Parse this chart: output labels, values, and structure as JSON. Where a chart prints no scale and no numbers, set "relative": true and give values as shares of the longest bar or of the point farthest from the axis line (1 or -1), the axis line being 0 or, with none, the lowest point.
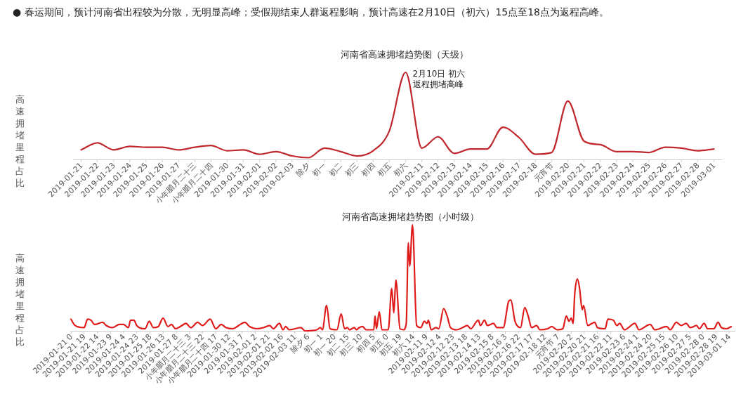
{
  "chart_data": [
    {
      "type": "line",
      "title": "河南省高速拥堵趋势图（天级）",
      "ylabel": "高速拥堵里程占比",
      "relative": true,
      "color": "#c0282d",
      "categories": [
        "2019-01-21",
        "2019-01-22",
        "2019-01-23",
        "2019-01-24",
        "2019-01-25",
        "2019-01-26",
        "2019-01-27",
        "小年腊月二十三",
        "小年腊月二十四",
        "2019-01-30",
        "2019-01-31",
        "2019-02-01",
        "2019-02-02",
        "2019-02-03",
        "除夕",
        "初一",
        "初二",
        "初三",
        "初四",
        "初五",
        "初六",
        "2019-02-11",
        "2019-02-12",
        "2019-02-13",
        "2019-02-14",
        "2019-02-15",
        "2019-02-16",
        "2019-02-17",
        "2019-02-18",
        "元宵节",
        "2019-02-20",
        "2019-02-21",
        "2019-02-22",
        "2019-02-23",
        "2019-02-24",
        "2019-02-25",
        "2019-02-26",
        "2019-02-27",
        "2019-02-28",
        "2019-03-01"
      ],
      "values": [
        0.11,
        0.19,
        0.11,
        0.15,
        0.14,
        0.14,
        0.11,
        0.14,
        0.16,
        0.1,
        0.11,
        0.06,
        0.09,
        0.04,
        0.02,
        0.13,
        0.09,
        0.04,
        0.1,
        0.33,
        1,
        0.13,
        0.26,
        0.07,
        0.12,
        0.12,
        0.37,
        0.25,
        0.06,
        0.08,
        0.67,
        0.21,
        0.17,
        0.09,
        0.09,
        0.08,
        0.14,
        0.13,
        0.1,
        0.12
      ],
      "annotations": [
        "● 春运期间，预计河南省出程较为分散，无明显高峰；受假期结束人群返程影响，预计高速在2月10日（初六）15点至18点为返程高峰。",
        {
          "text": "2月10日 初六",
          "x": "初六",
          "y": 1
        },
        {
          "text": "返程拥堵高峰",
          "x": "初六",
          "y": 1
        }
      ]
    },
    {
      "type": "line",
      "title": "河南省高速拥堵趋势图（小时级）",
      "ylabel": "高速拥堵里程占比",
      "relative": true,
      "color": "#e01b1b",
      "xlim": [
        "2019-01-21T00:00",
        "2019-03-01T23:00"
      ],
      "x": [
        "2019-01-21T00:00",
        "2019-01-21T06:00",
        "2019-01-21T19:00",
        "2019-01-22T00:00",
        "2019-01-22T05:00",
        "2019-01-22T10:00",
        "2019-01-22T22:00",
        "2019-01-23T03:00",
        "2019-01-23T12:00",
        "2019-01-23T22:00",
        "2019-01-24T04:00",
        "2019-01-24T11:00",
        "2019-01-24T14:00",
        "2019-01-24T19:00",
        "2019-01-24T23:00",
        "2019-01-25T11:00",
        "2019-01-25T17:00",
        "2019-01-25T23:00",
        "2019-01-26T06:00",
        "2019-01-26T13:00",
        "2019-01-26T20:00",
        "2019-01-27T01:00",
        "2019-01-27T07:00",
        "2019-01-27T16:00",
        "2019-01-27T22:00",
        "2019-01-28T05:00",
        "2019-01-28T15:00",
        "2019-01-28T22:00",
        "2019-01-29T09:00",
        "2019-01-29T17:00",
        "2019-01-30T01:00",
        "2019-01-30T08:00",
        "2019-01-30T18:00",
        "2019-01-31T02:00",
        "2019-01-31T11:00",
        "2019-01-31T18:00",
        "2019-02-01T04:00",
        "2019-02-01T14:00",
        "2019-02-01T23:00",
        "2019-02-02T04:00",
        "2019-02-02T13:00",
        "2019-02-02T18:00",
        "2019-02-02T22:00",
        "2019-02-03T03:00",
        "2019-02-03T20:00",
        "2019-02-04T02:00",
        "2019-02-04T19:00",
        "2019-02-05T00:00",
        "2019-02-05T03:00",
        "2019-02-05T09:00",
        "2019-02-05T14:00",
        "2019-02-06T00:00",
        "2019-02-06T06:00",
        "2019-02-06T11:00",
        "2019-02-06T15:00",
        "2019-02-06T18:00",
        "2019-02-07T01:00",
        "2019-02-07T04:00",
        "2019-02-07T08:00",
        "2019-02-07T13:00",
        "2019-02-07T18:00",
        "2019-02-08T05:00",
        "2019-02-08T07:00",
        "2019-02-08T09:00",
        "2019-02-08T13:00",
        "2019-02-08T17:00",
        "2019-02-09T02:00",
        "2019-02-09T07:00",
        "2019-02-09T10:00",
        "2019-02-09T13:00",
        "2019-02-09T19:00",
        "2019-02-10T00:00",
        "2019-02-10T04:00",
        "2019-02-10T07:00",
        "2019-02-10T09:00",
        "2019-02-10T13:00",
        "2019-02-10T19:00",
        "2019-02-11T01:00",
        "2019-02-11T06:00",
        "2019-02-11T10:00",
        "2019-02-11T12:00",
        "2019-02-11T16:00",
        "2019-02-11T23:00",
        "2019-02-12T03:00",
        "2019-02-12T10:00",
        "2019-02-12T15:00",
        "2019-02-12T20:00",
        "2019-02-13T05:00",
        "2019-02-13T13:00",
        "2019-02-13T20:00",
        "2019-02-14T01:00",
        "2019-02-14T12:00",
        "2019-02-14T15:00",
        "2019-02-14T21:00",
        "2019-02-15T01:00",
        "2019-02-15T10:00",
        "2019-02-15T15:00",
        "2019-02-16T00:00",
        "2019-02-16T08:00",
        "2019-02-16T11:00",
        "2019-02-16T17:00",
        "2019-02-17T01:00",
        "2019-02-17T07:00",
        "2019-02-17T12:00",
        "2019-02-17T17:00",
        "2019-02-18T00:00",
        "2019-02-18T05:00",
        "2019-02-18T16:00",
        "2019-02-18T22:00",
        "2019-02-19T06:00",
        "2019-02-19T14:00",
        "2019-02-19T19:00",
        "2019-02-19T23:00",
        "2019-02-20T02:00",
        "2019-02-20T05:00",
        "2019-02-20T07:00",
        "2019-02-20T11:00",
        "2019-02-20T14:00",
        "2019-02-20T18:00",
        "2019-02-20T20:00",
        "2019-02-21T02:00",
        "2019-02-21T08:00",
        "2019-02-21T12:00",
        "2019-02-21T16:00",
        "2019-02-22T03:00",
        "2019-02-22T07:00",
        "2019-02-22T15:00",
        "2019-02-22T20:00",
        "2019-02-23T00:00",
        "2019-02-23T07:00",
        "2019-02-23T22:00",
        "2019-02-24T04:00",
        "2019-02-24T20:00",
        "2019-02-25T03:00",
        "2019-02-25T20:00",
        "2019-02-26T01:00",
        "2019-02-26T10:00",
        "2019-02-26T17:00",
        "2019-02-27T00:00",
        "2019-02-27T06:00",
        "2019-02-27T15:00",
        "2019-02-27T19:00",
        "2019-02-28T02:00",
        "2019-02-28T07:00",
        "2019-02-28T16:00",
        "2019-02-28T22:00",
        "2019-03-01T03:00",
        "2019-03-01T10:00",
        "2019-03-01T17:00"
      ],
      "values": [
        0.11,
        0.05,
        0.03,
        0.11,
        0.1,
        0.06,
        0.08,
        0.05,
        0.03,
        0.06,
        0.06,
        0.03,
        0.1,
        0.1,
        0.05,
        0.02,
        0.09,
        0.03,
        0.04,
        0.12,
        0.04,
        0.06,
        0.02,
        0.05,
        0.07,
        0.03,
        0.08,
        0.05,
        0.11,
        0.02,
        0.06,
        0.03,
        0.02,
        0.05,
        0.08,
        0.04,
        0.02,
        0.03,
        0.05,
        0.02,
        0.07,
        0.01,
        0.04,
        0.01,
        0.03,
        0,
        0.01,
        0.03,
        0.01,
        0.24,
        0.02,
        0.01,
        0.16,
        0.02,
        0.03,
        0.01,
        0.03,
        0.01,
        0.03,
        0.04,
        0.01,
        0.01,
        0.14,
        0.02,
        0.18,
        0.01,
        0.01,
        0.4,
        0.17,
        0.48,
        0.02,
        0.01,
        0.07,
        0.83,
        0.61,
        1,
        0.05,
        0.03,
        0.09,
        0.07,
        0.1,
        0.01,
        0.03,
        0.02,
        0.21,
        0.14,
        0.03,
        0.01,
        0.03,
        0.05,
        0.02,
        0.1,
        0.05,
        0.1,
        0.05,
        0.07,
        0.03,
        0.03,
        0.28,
        0.29,
        0.09,
        0.03,
        0.22,
        0.14,
        0.03,
        0.05,
        0.01,
        0.02,
        0.04,
        0.01,
        0.02,
        0.14,
        0.09,
        0.12,
        0.07,
        0.33,
        0.49,
        0.41,
        0.2,
        0.24,
        0.05,
        0.07,
        0.08,
        0.03,
        0.02,
        0.11,
        0.1,
        0.05,
        0.07,
        0.01,
        0.07,
        0.01,
        0.06,
        0.01,
        0.04,
        0.01,
        0.08,
        0.05,
        0.07,
        0.03,
        0.05,
        0.02,
        0.07,
        0.02,
        0.02,
        0.08,
        0.03,
        0.02,
        0.04
      ],
      "xticks": [
        {
          "value": "2019-01-21T00:00",
          "label": "2019-01-21 0"
        },
        {
          "value": "2019-01-21T19:00",
          "label": "2019-01-21 19"
        },
        {
          "value": "2019-01-22T14:00",
          "label": "2019-01-22 14"
        },
        {
          "value": "2019-01-23T09:00",
          "label": "2019-01-23 9"
        },
        {
          "value": "2019-01-24T04:00",
          "label": "2019-01-24 4"
        },
        {
          "value": "2019-01-24T23:00",
          "label": "2019-01-24 23"
        },
        {
          "value": "2019-01-25T18:00",
          "label": "2019-01-25 18"
        },
        {
          "value": "2019-01-26T13:00",
          "label": "2019-01-26 13"
        },
        {
          "value": "2019-01-27T08:00",
          "label": "2019-01-27 8"
        },
        {
          "value": "2019-01-28T03:00",
          "label": "小年腊月二十三 3"
        },
        {
          "value": "2019-01-28T22:00",
          "label": "小年腊月二十三 22"
        },
        {
          "value": "2019-01-29T17:00",
          "label": "小年腊月二十四 17"
        },
        {
          "value": "2019-01-30T12:00",
          "label": "2019-01-30 12"
        },
        {
          "value": "2019-01-31T07:00",
          "label": "2019-01-31 7"
        },
        {
          "value": "2019-02-01T02:00",
          "label": "2019-02-01 2"
        },
        {
          "value": "2019-02-01T21:00",
          "label": "2019-02-01 21"
        },
        {
          "value": "2019-02-02T16:00",
          "label": "2019-02-02 16"
        },
        {
          "value": "2019-02-03T11:00",
          "label": "2019-02-03 11"
        },
        {
          "value": "2019-02-04T06:00",
          "label": "除夕 6"
        },
        {
          "value": "2019-02-05T01:00",
          "label": "初一 1"
        },
        {
          "value": "2019-02-05T20:00",
          "label": "初一 20"
        },
        {
          "value": "2019-02-06T15:00",
          "label": "初二 15"
        },
        {
          "value": "2019-02-07T10:00",
          "label": "初三 10"
        },
        {
          "value": "2019-02-08T05:00",
          "label": "初四 5"
        },
        {
          "value": "2019-02-09T00:00",
          "label": "初五 0"
        },
        {
          "value": "2019-02-09T19:00",
          "label": "初五 19"
        },
        {
          "value": "2019-02-10T14:00",
          "label": "初六 14"
        },
        {
          "value": "2019-02-11T09:00",
          "label": "2019-02-11 9"
        },
        {
          "value": "2019-02-12T04:00",
          "label": "2019-02-12 4"
        },
        {
          "value": "2019-02-12T23:00",
          "label": "2019-02-12 23"
        },
        {
          "value": "2019-02-13T18:00",
          "label": "2019-02-13 18"
        },
        {
          "value": "2019-02-14T13:00",
          "label": "2019-02-14 13"
        },
        {
          "value": "2019-02-15T08:00",
          "label": "2019-02-15 8"
        },
        {
          "value": "2019-02-16T03:00",
          "label": "2019-02-16 3"
        },
        {
          "value": "2019-02-16T22:00",
          "label": "2019-02-16 22"
        },
        {
          "value": "2019-02-17T17:00",
          "label": "2019-02-17 17"
        },
        {
          "value": "2019-02-18T12:00",
          "label": "2019-02-18 12"
        },
        {
          "value": "2019-02-19T07:00",
          "label": "元宵节 7"
        },
        {
          "value": "2019-02-20T02:00",
          "label": "2019-02-20 2"
        },
        {
          "value": "2019-02-20T21:00",
          "label": "2019-02-20 21"
        },
        {
          "value": "2019-02-21T16:00",
          "label": "2019-02-21 16"
        },
        {
          "value": "2019-02-22T11:00",
          "label": "2019-02-22 11"
        },
        {
          "value": "2019-02-23T06:00",
          "label": "2019-02-23 6"
        },
        {
          "value": "2019-02-24T01:00",
          "label": "2019-02-24 1"
        },
        {
          "value": "2019-02-24T20:00",
          "label": "2019-02-24 20"
        },
        {
          "value": "2019-02-25T15:00",
          "label": "2019-02-25 15"
        },
        {
          "value": "2019-02-26T10:00",
          "label": "2019-02-26 10"
        },
        {
          "value": "2019-02-27T05:00",
          "label": "2019-02-27 5"
        },
        {
          "value": "2019-02-28T00:00",
          "label": "2019-02-28 0"
        },
        {
          "value": "2019-02-28T19:00",
          "label": "2019-02-28 19"
        },
        {
          "value": "2019-03-01T14:00",
          "label": "2019-03-01 14"
        }
      ]
    }
  ]
}
